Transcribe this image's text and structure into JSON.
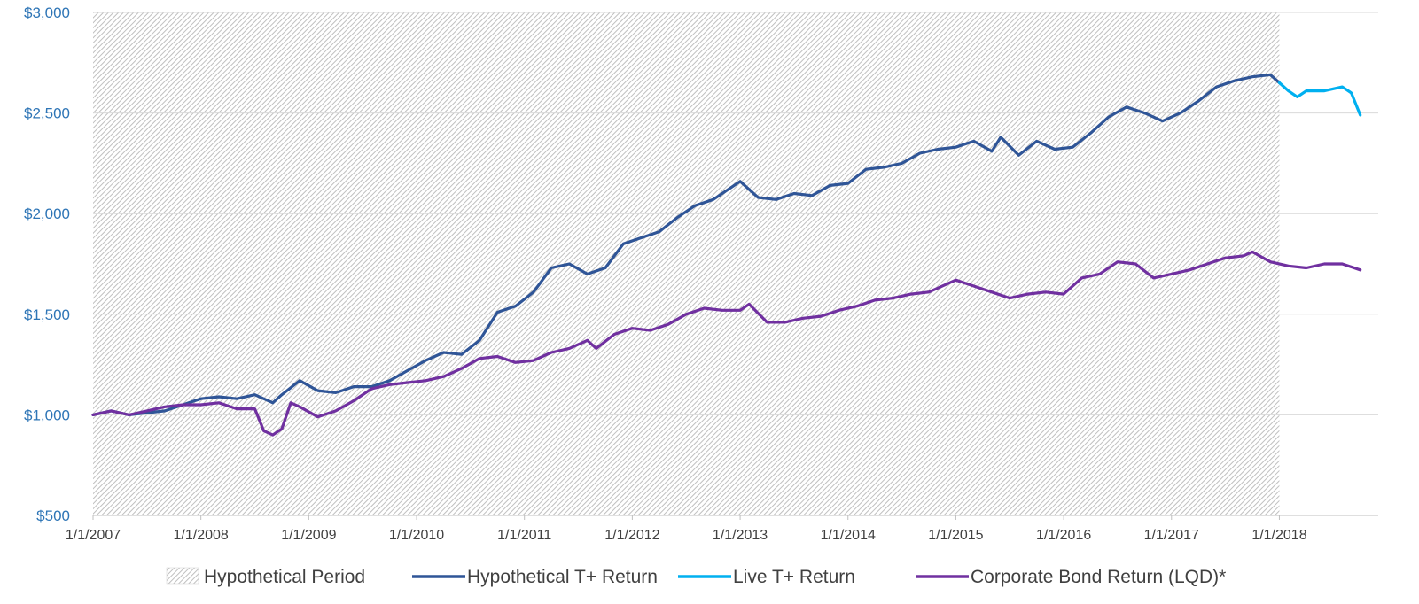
{
  "chart_data": {
    "type": "line",
    "title": "",
    "xlabel": "",
    "ylabel": "",
    "ylim": [
      500,
      3000
    ],
    "xlim": [
      "2007-01",
      "2018-12"
    ],
    "grid": "horizontal",
    "legend_position": "bottom",
    "y_ticks": [
      "$500",
      "$1,000",
      "$1,500",
      "$2,000",
      "$2,500",
      "$3,000"
    ],
    "x_ticks": [
      "1/1/2007",
      "1/1/2008",
      "1/1/2009",
      "1/1/2010",
      "1/1/2011",
      "1/1/2012",
      "1/1/2013",
      "1/1/2014",
      "1/1/2015",
      "1/1/2016",
      "1/1/2017",
      "1/1/2018"
    ],
    "shaded_region": {
      "name": "Hypothetical Period",
      "from": "2007-01",
      "to": "2018-01",
      "color": "#bfbfbf"
    },
    "series": [
      {
        "name": "Hypothetical T+ Return",
        "color": "#2f5597",
        "points": [
          [
            "2007-01",
            1000
          ],
          [
            "2007-03",
            1020
          ],
          [
            "2007-05",
            1000
          ],
          [
            "2007-07",
            1010
          ],
          [
            "2007-09",
            1020
          ],
          [
            "2007-11",
            1050
          ],
          [
            "2008-01",
            1080
          ],
          [
            "2008-03",
            1090
          ],
          [
            "2008-05",
            1080
          ],
          [
            "2008-07",
            1100
          ],
          [
            "2008-09",
            1060
          ],
          [
            "2008-10",
            1100
          ],
          [
            "2008-12",
            1170
          ],
          [
            "2009-02",
            1120
          ],
          [
            "2009-04",
            1110
          ],
          [
            "2009-06",
            1140
          ],
          [
            "2009-08",
            1140
          ],
          [
            "2009-10",
            1170
          ],
          [
            "2009-12",
            1220
          ],
          [
            "2010-02",
            1270
          ],
          [
            "2010-04",
            1310
          ],
          [
            "2010-06",
            1300
          ],
          [
            "2010-08",
            1370
          ],
          [
            "2010-10",
            1510
          ],
          [
            "2010-12",
            1540
          ],
          [
            "2011-02",
            1610
          ],
          [
            "2011-04",
            1730
          ],
          [
            "2011-06",
            1750
          ],
          [
            "2011-08",
            1700
          ],
          [
            "2011-10",
            1730
          ],
          [
            "2011-12",
            1850
          ],
          [
            "2012-02",
            1880
          ],
          [
            "2012-04",
            1910
          ],
          [
            "2012-06",
            1980
          ],
          [
            "2012-08",
            2040
          ],
          [
            "2012-10",
            2070
          ],
          [
            "2012-12",
            2130
          ],
          [
            "2013-01",
            2160
          ],
          [
            "2013-03",
            2080
          ],
          [
            "2013-05",
            2070
          ],
          [
            "2013-07",
            2100
          ],
          [
            "2013-09",
            2090
          ],
          [
            "2013-11",
            2140
          ],
          [
            "2014-01",
            2150
          ],
          [
            "2014-03",
            2220
          ],
          [
            "2014-05",
            2230
          ],
          [
            "2014-07",
            2250
          ],
          [
            "2014-09",
            2300
          ],
          [
            "2014-11",
            2320
          ],
          [
            "2015-01",
            2330
          ],
          [
            "2015-03",
            2360
          ],
          [
            "2015-05",
            2310
          ],
          [
            "2015-06",
            2380
          ],
          [
            "2015-08",
            2290
          ],
          [
            "2015-10",
            2360
          ],
          [
            "2015-12",
            2320
          ],
          [
            "2016-02",
            2330
          ],
          [
            "2016-04",
            2400
          ],
          [
            "2016-06",
            2480
          ],
          [
            "2016-08",
            2530
          ],
          [
            "2016-10",
            2500
          ],
          [
            "2016-12",
            2460
          ],
          [
            "2017-02",
            2500
          ],
          [
            "2017-04",
            2560
          ],
          [
            "2017-06",
            2630
          ],
          [
            "2017-08",
            2660
          ],
          [
            "2017-10",
            2680
          ],
          [
            "2017-12",
            2690
          ],
          [
            "2018-01",
            2650
          ]
        ]
      },
      {
        "name": "Live T+ Return",
        "color": "#00b0f0",
        "points": [
          [
            "2018-01",
            2650
          ],
          [
            "2018-02",
            2610
          ],
          [
            "2018-03",
            2580
          ],
          [
            "2018-04",
            2610
          ],
          [
            "2018-05",
            2610
          ],
          [
            "2018-06",
            2610
          ],
          [
            "2018-07",
            2620
          ],
          [
            "2018-08",
            2630
          ],
          [
            "2018-09",
            2600
          ],
          [
            "2018-10",
            2490
          ]
        ]
      },
      {
        "name": "Corporate Bond Return (LQD)*",
        "color": "#7030a0",
        "points": [
          [
            "2007-01",
            1000
          ],
          [
            "2007-03",
            1020
          ],
          [
            "2007-05",
            1000
          ],
          [
            "2007-07",
            1020
          ],
          [
            "2007-09",
            1040
          ],
          [
            "2007-11",
            1050
          ],
          [
            "2008-01",
            1050
          ],
          [
            "2008-03",
            1060
          ],
          [
            "2008-05",
            1030
          ],
          [
            "2008-07",
            1030
          ],
          [
            "2008-08",
            920
          ],
          [
            "2008-09",
            900
          ],
          [
            "2008-10",
            930
          ],
          [
            "2008-11",
            1060
          ],
          [
            "2008-12",
            1040
          ],
          [
            "2009-02",
            990
          ],
          [
            "2009-04",
            1020
          ],
          [
            "2009-06",
            1070
          ],
          [
            "2009-08",
            1130
          ],
          [
            "2009-10",
            1150
          ],
          [
            "2009-12",
            1160
          ],
          [
            "2010-02",
            1170
          ],
          [
            "2010-04",
            1190
          ],
          [
            "2010-06",
            1230
          ],
          [
            "2010-08",
            1280
          ],
          [
            "2010-10",
            1290
          ],
          [
            "2010-12",
            1260
          ],
          [
            "2011-02",
            1270
          ],
          [
            "2011-04",
            1310
          ],
          [
            "2011-06",
            1330
          ],
          [
            "2011-08",
            1370
          ],
          [
            "2011-09",
            1330
          ],
          [
            "2011-11",
            1400
          ],
          [
            "2012-01",
            1430
          ],
          [
            "2012-03",
            1420
          ],
          [
            "2012-05",
            1450
          ],
          [
            "2012-07",
            1500
          ],
          [
            "2012-09",
            1530
          ],
          [
            "2012-11",
            1520
          ],
          [
            "2013-01",
            1520
          ],
          [
            "2013-02",
            1550
          ],
          [
            "2013-04",
            1460
          ],
          [
            "2013-06",
            1460
          ],
          [
            "2013-08",
            1480
          ],
          [
            "2013-10",
            1490
          ],
          [
            "2013-12",
            1520
          ],
          [
            "2014-02",
            1540
          ],
          [
            "2014-04",
            1570
          ],
          [
            "2014-06",
            1580
          ],
          [
            "2014-08",
            1600
          ],
          [
            "2014-10",
            1610
          ],
          [
            "2015-01",
            1670
          ],
          [
            "2015-03",
            1640
          ],
          [
            "2015-05",
            1610
          ],
          [
            "2015-07",
            1580
          ],
          [
            "2015-09",
            1600
          ],
          [
            "2015-11",
            1610
          ],
          [
            "2016-01",
            1600
          ],
          [
            "2016-03",
            1680
          ],
          [
            "2016-05",
            1700
          ],
          [
            "2016-07",
            1760
          ],
          [
            "2016-09",
            1750
          ],
          [
            "2016-11",
            1680
          ],
          [
            "2017-01",
            1700
          ],
          [
            "2017-03",
            1720
          ],
          [
            "2017-05",
            1750
          ],
          [
            "2017-07",
            1780
          ],
          [
            "2017-09",
            1790
          ],
          [
            "2017-10",
            1810
          ],
          [
            "2017-12",
            1760
          ],
          [
            "2018-02",
            1740
          ],
          [
            "2018-04",
            1730
          ],
          [
            "2018-06",
            1750
          ],
          [
            "2018-08",
            1750
          ],
          [
            "2018-10",
            1720
          ]
        ]
      }
    ]
  }
}
